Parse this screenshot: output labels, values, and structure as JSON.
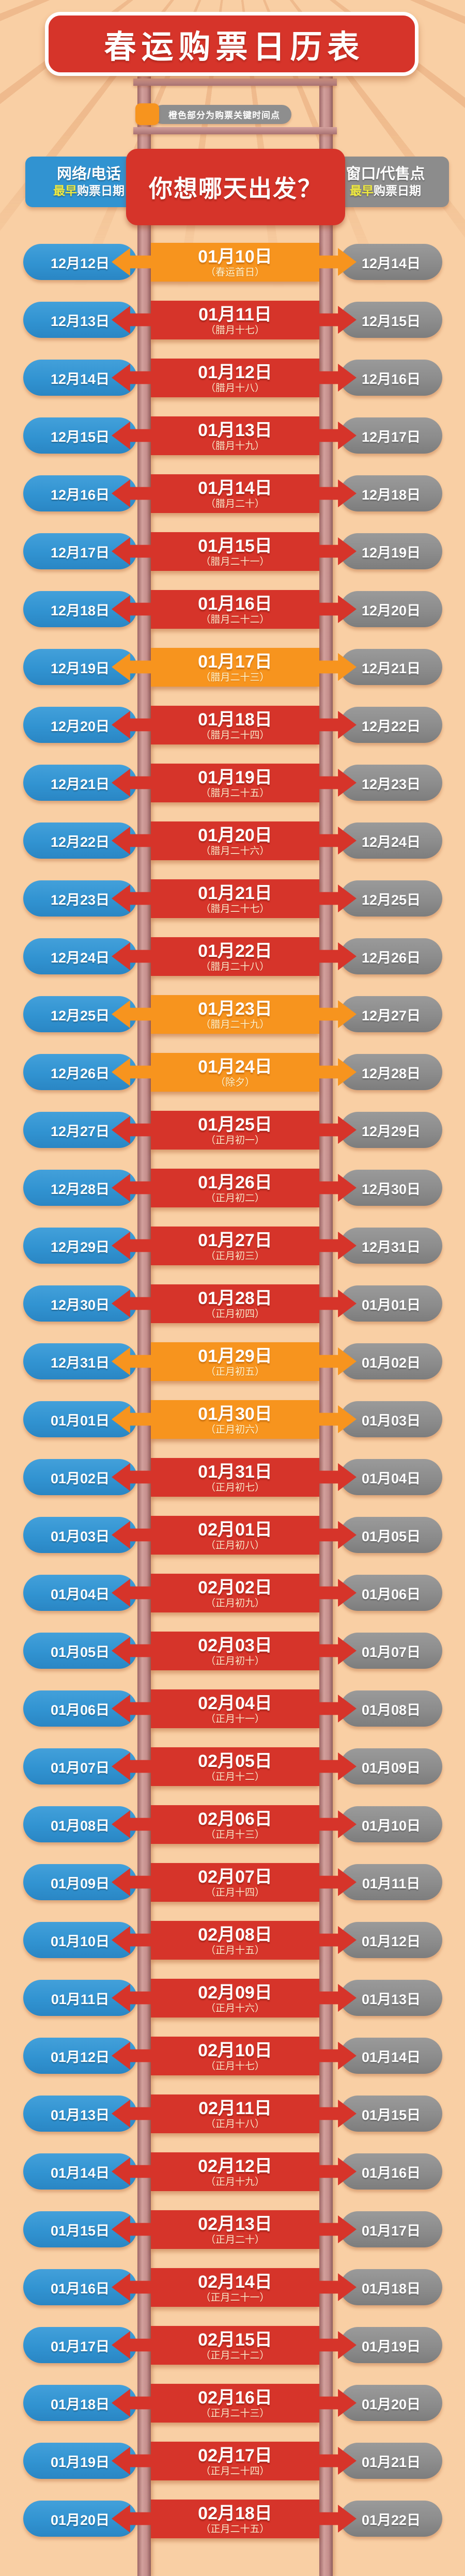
{
  "title": "春运购票日历表",
  "legend": {
    "text": "橙色部分为购票关键时间点"
  },
  "headers": {
    "left": {
      "line1": "网络/电话",
      "highlight": "最早",
      "rest": "购票日期"
    },
    "center": "你想哪天出发？",
    "right": {
      "line1": "窗口/代售点",
      "highlight": "最早",
      "rest": "购票日期"
    }
  },
  "colors": {
    "background": "#f9cfa4",
    "red": "#d6342a",
    "orange": "#f7941e",
    "blue": "#3193d1",
    "gray": "#8c8c8c",
    "post_rose": "#c48e8c",
    "highlight_yellow": "#efe93f"
  },
  "layout_note": "",
  "rows": [
    {
      "online": "12月12日",
      "depart": "01月10日",
      "lunar": "（春运首日）",
      "counter": "12月14日",
      "key": true
    },
    {
      "online": "12月13日",
      "depart": "01月11日",
      "lunar": "（腊月十七）",
      "counter": "12月15日",
      "key": false
    },
    {
      "online": "12月14日",
      "depart": "01月12日",
      "lunar": "（腊月十八）",
      "counter": "12月16日",
      "key": false
    },
    {
      "online": "12月15日",
      "depart": "01月13日",
      "lunar": "（腊月十九）",
      "counter": "12月17日",
      "key": false
    },
    {
      "online": "12月16日",
      "depart": "01月14日",
      "lunar": "（腊月二十）",
      "counter": "12月18日",
      "key": false
    },
    {
      "online": "12月17日",
      "depart": "01月15日",
      "lunar": "（腊月二十一）",
      "counter": "12月19日",
      "key": false
    },
    {
      "online": "12月18日",
      "depart": "01月16日",
      "lunar": "（腊月二十二）",
      "counter": "12月20日",
      "key": false
    },
    {
      "online": "12月19日",
      "depart": "01月17日",
      "lunar": "（腊月二十三）",
      "counter": "12月21日",
      "key": true
    },
    {
      "online": "12月20日",
      "depart": "01月18日",
      "lunar": "（腊月二十四）",
      "counter": "12月22日",
      "key": false
    },
    {
      "online": "12月21日",
      "depart": "01月19日",
      "lunar": "（腊月二十五）",
      "counter": "12月23日",
      "key": false
    },
    {
      "online": "12月22日",
      "depart": "01月20日",
      "lunar": "（腊月二十六）",
      "counter": "12月24日",
      "key": false
    },
    {
      "online": "12月23日",
      "depart": "01月21日",
      "lunar": "（腊月二十七）",
      "counter": "12月25日",
      "key": false
    },
    {
      "online": "12月24日",
      "depart": "01月22日",
      "lunar": "（腊月二十八）",
      "counter": "12月26日",
      "key": false
    },
    {
      "online": "12月25日",
      "depart": "01月23日",
      "lunar": "（腊月二十九）",
      "counter": "12月27日",
      "key": true
    },
    {
      "online": "12月26日",
      "depart": "01月24日",
      "lunar": "（除夕）",
      "counter": "12月28日",
      "key": true
    },
    {
      "online": "12月27日",
      "depart": "01月25日",
      "lunar": "（正月初一）",
      "counter": "12月29日",
      "key": false
    },
    {
      "online": "12月28日",
      "depart": "01月26日",
      "lunar": "（正月初二）",
      "counter": "12月30日",
      "key": false
    },
    {
      "online": "12月29日",
      "depart": "01月27日",
      "lunar": "（正月初三）",
      "counter": "12月31日",
      "key": false
    },
    {
      "online": "12月30日",
      "depart": "01月28日",
      "lunar": "（正月初四）",
      "counter": "01月01日",
      "key": false
    },
    {
      "online": "12月31日",
      "depart": "01月29日",
      "lunar": "（正月初五）",
      "counter": "01月02日",
      "key": true
    },
    {
      "online": "01月01日",
      "depart": "01月30日",
      "lunar": "（正月初六）",
      "counter": "01月03日",
      "key": true
    },
    {
      "online": "01月02日",
      "depart": "01月31日",
      "lunar": "（正月初七）",
      "counter": "01月04日",
      "key": false
    },
    {
      "online": "01月03日",
      "depart": "02月01日",
      "lunar": "（正月初八）",
      "counter": "01月05日",
      "key": false
    },
    {
      "online": "01月04日",
      "depart": "02月02日",
      "lunar": "（正月初九）",
      "counter": "01月06日",
      "key": false
    },
    {
      "online": "01月05日",
      "depart": "02月03日",
      "lunar": "（正月初十）",
      "counter": "01月07日",
      "key": false
    },
    {
      "online": "01月06日",
      "depart": "02月04日",
      "lunar": "（正月十一）",
      "counter": "01月08日",
      "key": false
    },
    {
      "online": "01月07日",
      "depart": "02月05日",
      "lunar": "（正月十二）",
      "counter": "01月09日",
      "key": false
    },
    {
      "online": "01月08日",
      "depart": "02月06日",
      "lunar": "（正月十三）",
      "counter": "01月10日",
      "key": false
    },
    {
      "online": "01月09日",
      "depart": "02月07日",
      "lunar": "（正月十四）",
      "counter": "01月11日",
      "key": false
    },
    {
      "online": "01月10日",
      "depart": "02月08日",
      "lunar": "（正月十五）",
      "counter": "01月12日",
      "key": false
    },
    {
      "online": "01月11日",
      "depart": "02月09日",
      "lunar": "（正月十六）",
      "counter": "01月13日",
      "key": false
    },
    {
      "online": "01月12日",
      "depart": "02月10日",
      "lunar": "（正月十七）",
      "counter": "01月14日",
      "key": false
    },
    {
      "online": "01月13日",
      "depart": "02月11日",
      "lunar": "（正月十八）",
      "counter": "01月15日",
      "key": false
    },
    {
      "online": "01月14日",
      "depart": "02月12日",
      "lunar": "（正月十九）",
      "counter": "01月16日",
      "key": false
    },
    {
      "online": "01月15日",
      "depart": "02月13日",
      "lunar": "（正月二十）",
      "counter": "01月17日",
      "key": false
    },
    {
      "online": "01月16日",
      "depart": "02月14日",
      "lunar": "（正月二十一）",
      "counter": "01月18日",
      "key": false
    },
    {
      "online": "01月17日",
      "depart": "02月15日",
      "lunar": "（正月二十二）",
      "counter": "01月19日",
      "key": false
    },
    {
      "online": "01月18日",
      "depart": "02月16日",
      "lunar": "（正月二十三）",
      "counter": "01月20日",
      "key": false
    },
    {
      "online": "01月19日",
      "depart": "02月17日",
      "lunar": "（正月二十四）",
      "counter": "01月21日",
      "key": false
    },
    {
      "online": "01月20日",
      "depart": "02月18日",
      "lunar": "（正月二十五）",
      "counter": "01月22日",
      "key": false
    }
  ]
}
